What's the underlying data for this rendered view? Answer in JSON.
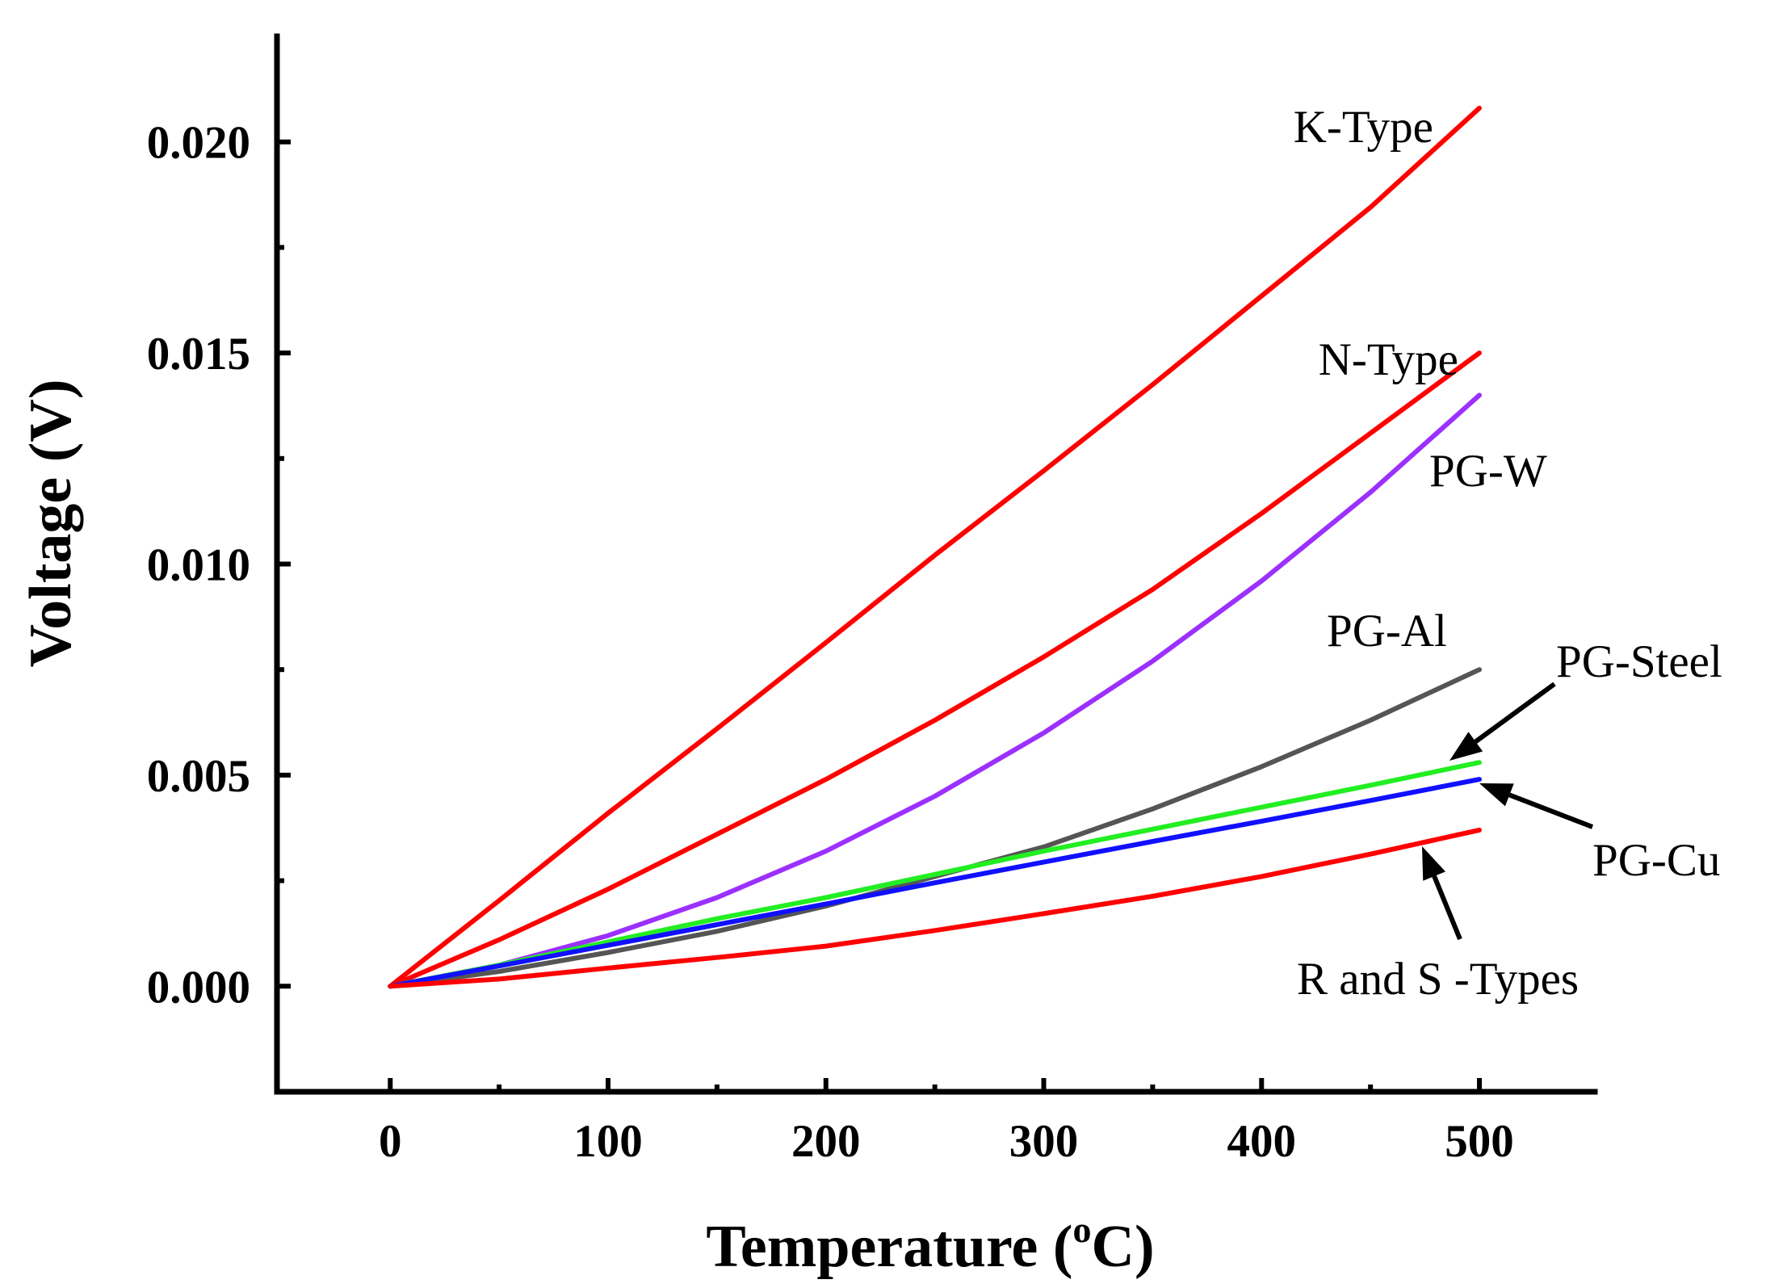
{
  "chart_data": {
    "type": "line",
    "title": "",
    "xlabel": "Temperature",
    "xlabel_unit_open": " (",
    "xlabel_unit_sup": "o",
    "xlabel_unit_close": "C)",
    "ylabel": "Voltage (V)",
    "xlim": [
      -52,
      553
    ],
    "ylim": [
      -0.0025,
      0.0225
    ],
    "xticks": [
      0,
      100,
      200,
      300,
      400,
      500
    ],
    "xtick_labels": [
      "0",
      "100",
      "200",
      "300",
      "400",
      "500"
    ],
    "yticks": [
      0.0,
      0.005,
      0.01,
      0.015,
      0.02
    ],
    "ytick_labels": [
      "0.000",
      "0.005",
      "0.010",
      "0.015",
      "0.020"
    ],
    "grid": false,
    "x": [
      0,
      50,
      100,
      150,
      200,
      250,
      300,
      350,
      400,
      450,
      500
    ],
    "series": [
      {
        "name": "K-Type",
        "label": "K-Type",
        "color": "#ff0000",
        "values": [
          0.0,
          0.00203,
          0.0041,
          0.0061,
          0.00814,
          0.01021,
          0.01221,
          0.01425,
          0.01635,
          0.01845,
          0.0208
        ]
      },
      {
        "name": "N-Type",
        "label": "N-Type",
        "color": "#ff0000",
        "values": [
          0.0,
          0.0011,
          0.0023,
          0.0036,
          0.0049,
          0.0063,
          0.0078,
          0.0094,
          0.0112,
          0.0131,
          0.015
        ]
      },
      {
        "name": "PG-W",
        "label": "PG-W",
        "color": "#9b30ff",
        "values": [
          0.0,
          0.0005,
          0.0012,
          0.0021,
          0.0032,
          0.0045,
          0.006,
          0.0077,
          0.0096,
          0.0117,
          0.014
        ]
      },
      {
        "name": "PG-Al",
        "label": "PG-Al",
        "color": "#555555",
        "values": [
          0.0,
          0.00035,
          0.0008,
          0.0013,
          0.0019,
          0.0026,
          0.0033,
          0.0042,
          0.0052,
          0.0063,
          0.0075
        ]
      },
      {
        "name": "PG-Steel",
        "label": "PG-Steel",
        "color": "#22ee22",
        "values": [
          0.0,
          0.0005,
          0.00105,
          0.0016,
          0.0021,
          0.00265,
          0.0032,
          0.00372,
          0.00424,
          0.00476,
          0.0053
        ]
      },
      {
        "name": "PG-Cu",
        "label": "PG-Cu",
        "color": "#1010ff",
        "values": [
          0.0,
          0.00048,
          0.00097,
          0.00146,
          0.00195,
          0.00245,
          0.00294,
          0.00343,
          0.00391,
          0.0044,
          0.0049
        ]
      },
      {
        "name": "R and S -Types",
        "label": "R and S -Types",
        "color": "#ff0000",
        "values": [
          0.0,
          0.00017,
          0.00043,
          0.00068,
          0.00095,
          0.00132,
          0.00172,
          0.00213,
          0.0026,
          0.00313,
          0.0037
        ]
      }
    ]
  }
}
